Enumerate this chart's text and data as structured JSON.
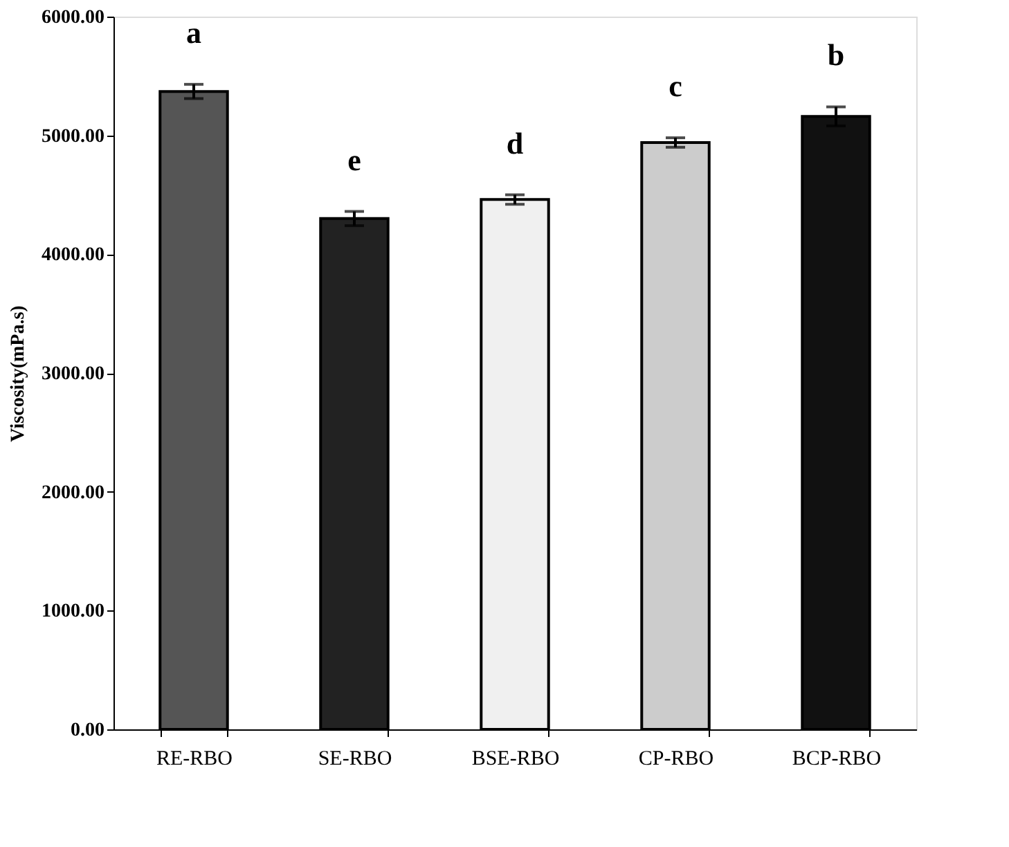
{
  "chart_data": {
    "type": "bar",
    "ylabel": "Viscosity(mPa.s)",
    "categories": [
      "RE-RBO",
      "SE-RBO",
      "BSE-RBO",
      "CP-RBO",
      "BCP-RBO"
    ],
    "values": [
      5370,
      4300,
      4460,
      4940,
      5160
    ],
    "errors": [
      60,
      60,
      40,
      40,
      80
    ],
    "colors": [
      "#555555",
      "#222222",
      "#f0f0f0",
      "#cccccc",
      "#111111"
    ],
    "ylim": [
      0,
      6000
    ],
    "yticks": [
      {
        "value": 0,
        "label": "0.00"
      },
      {
        "value": 1000,
        "label": "1000.00"
      },
      {
        "value": 2000,
        "label": "2000.00"
      },
      {
        "value": 3000,
        "label": "3000.00"
      },
      {
        "value": 4000,
        "label": "4000.00"
      },
      {
        "value": 5000,
        "label": "5000.00"
      },
      {
        "value": 6000,
        "label": "6000.00"
      }
    ],
    "annotations": [
      "a",
      "e",
      "d",
      "c",
      "b"
    ],
    "grid": false
  }
}
